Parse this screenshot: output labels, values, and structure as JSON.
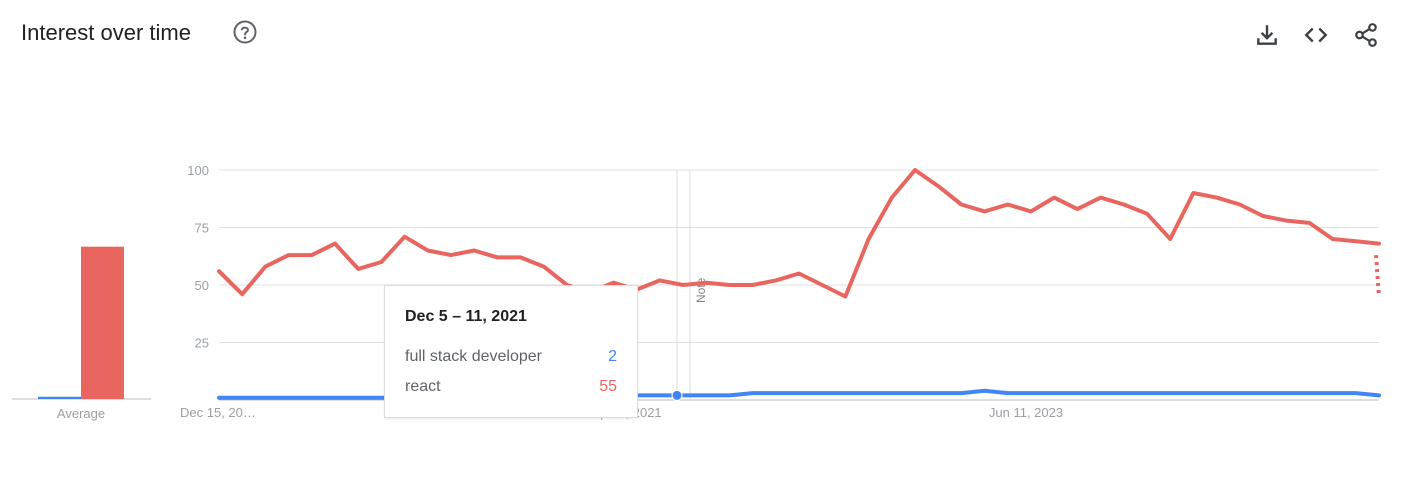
{
  "header": {
    "title": "Interest over time",
    "help_icon": "help-circle-icon",
    "download_icon": "download-icon",
    "embed_icon": "code-icon",
    "share_icon": "share-icon"
  },
  "colors": {
    "series_a": "#4285f4",
    "series_b": "#e8665f",
    "grid": "#e0e0e0",
    "axis_text": "#9aa0a6"
  },
  "tooltip": {
    "date": "Dec 5 – 11, 2021",
    "rows": [
      {
        "label": "full stack developer",
        "value": "2",
        "color": "#4285f4"
      },
      {
        "label": "react",
        "value": "55",
        "color": "#e8665f"
      }
    ]
  },
  "note_label": "Note",
  "chart_data": [
    {
      "type": "bar",
      "categories": [
        "Average"
      ],
      "series": [
        {
          "name": "full stack developer",
          "values": [
            1
          ]
        },
        {
          "name": "react",
          "values": [
            68
          ]
        }
      ],
      "ylim": [
        0,
        100
      ]
    },
    {
      "type": "line",
      "x_tick_labels": [
        "Dec 15, 20…",
        "Sep 12, 2021",
        "Jun 11, 2023"
      ],
      "y_ticks": [
        25,
        50,
        75,
        100
      ],
      "ylim": [
        0,
        100
      ],
      "grid": true,
      "x": [
        0,
        2,
        4,
        6,
        8,
        10,
        12,
        14,
        16,
        18,
        20,
        22,
        24,
        26,
        28,
        30,
        32,
        34,
        36,
        38,
        40,
        42,
        44,
        46,
        48,
        50,
        52,
        54,
        56,
        58,
        60,
        62,
        64,
        66,
        68,
        70,
        72,
        74,
        76,
        78,
        80,
        82,
        84,
        86,
        88,
        90,
        92,
        94,
        96,
        98,
        100
      ],
      "series": [
        {
          "name": "full stack developer",
          "values": [
            1,
            1,
            1,
            1,
            1,
            1,
            1,
            1,
            1,
            2,
            2,
            2,
            2,
            2,
            2,
            2,
            2,
            2,
            2,
            2,
            2,
            2,
            2,
            3,
            3,
            3,
            3,
            3,
            3,
            3,
            3,
            3,
            3,
            4,
            3,
            3,
            3,
            3,
            3,
            3,
            3,
            3,
            3,
            3,
            3,
            3,
            3,
            3,
            3,
            3,
            2
          ]
        },
        {
          "name": "react",
          "values": [
            56,
            46,
            58,
            63,
            63,
            68,
            57,
            60,
            71,
            65,
            63,
            65,
            62,
            62,
            58,
            50,
            47,
            51,
            48,
            52,
            50,
            51,
            50,
            50,
            52,
            55,
            50,
            45,
            70,
            88,
            100,
            93,
            85,
            82,
            85,
            82,
            88,
            83,
            88,
            85,
            81,
            70,
            90,
            88,
            85,
            80,
            78,
            77,
            70,
            69,
            68
          ]
        }
      ],
      "tail_dotted": {
        "series": "react",
        "from": 63,
        "to": 45
      }
    }
  ]
}
